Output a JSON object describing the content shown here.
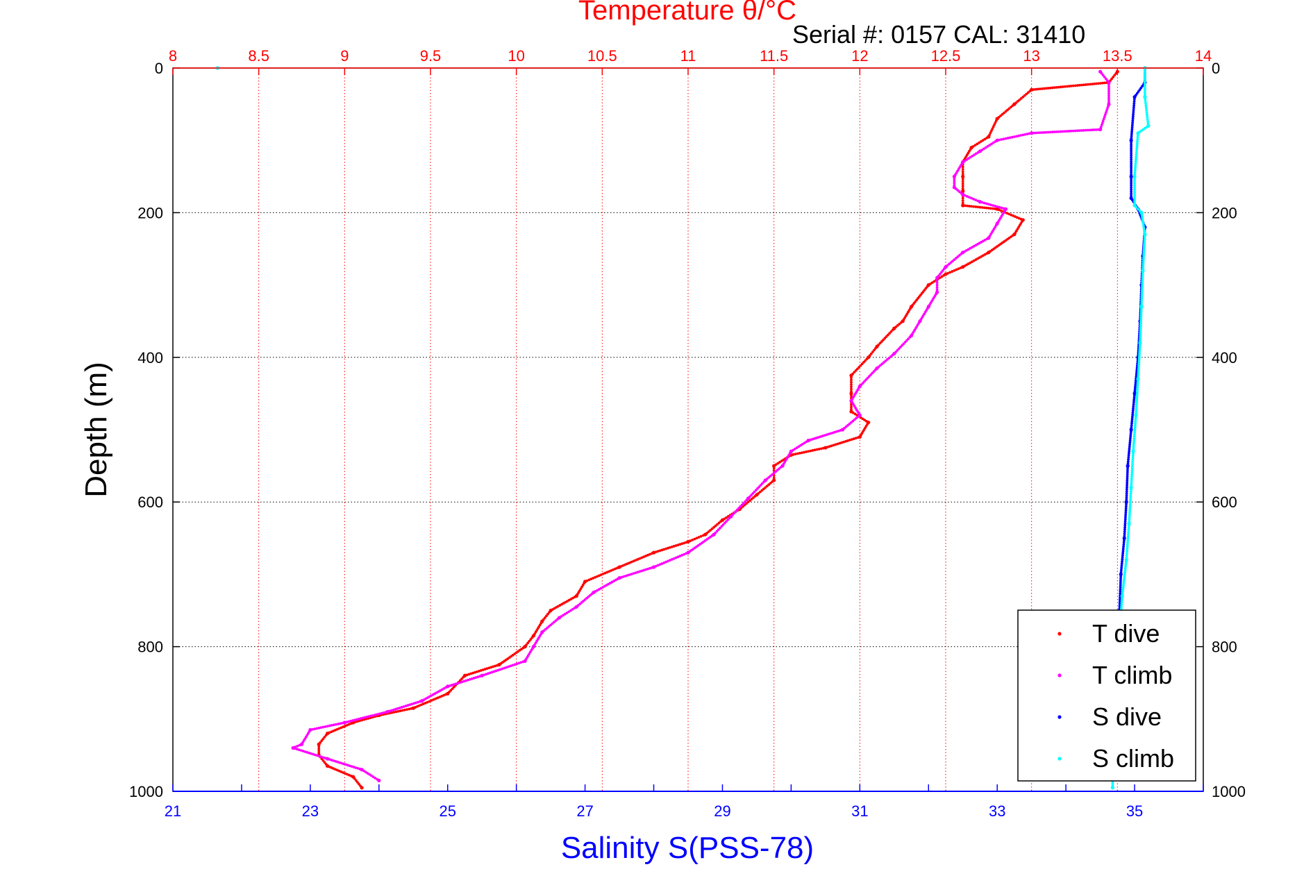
{
  "chart_data": {
    "type": "scatter",
    "title_top": "Temperature θ/°C",
    "subtitle": "Serial #: 0157  CAL: 31410",
    "xlabel_bottom": "Salinity S(PSS-78)",
    "ylabel": "Depth (m)",
    "temperature_axis": {
      "lim": [
        8,
        14
      ],
      "ticks": [
        "8",
        "8.5",
        "9",
        "9.5",
        "10",
        "10.5",
        "11",
        "11.5",
        "12",
        "12.5",
        "13",
        "13.5",
        "14"
      ],
      "tick_values": [
        8,
        8.5,
        9,
        9.5,
        10,
        10.5,
        11,
        11.5,
        12,
        12.5,
        13,
        13.5,
        14
      ],
      "color": "#ff0000"
    },
    "salinity_axis": {
      "lim": [
        21,
        36
      ],
      "ticks": [
        "21",
        "23",
        "25",
        "27",
        "29",
        "31",
        "33",
        "35"
      ],
      "tick_values": [
        21,
        23,
        25,
        27,
        29,
        31,
        33,
        35
      ],
      "color": "#0000ff"
    },
    "depth_axis": {
      "lim": [
        0,
        1000
      ],
      "reversed": true,
      "ticks": [
        "0",
        "200",
        "400",
        "600",
        "800",
        "1000"
      ],
      "tick_values": [
        0,
        200,
        400,
        600,
        800,
        1000
      ]
    },
    "grid": true,
    "legend_placement": "bottom-right",
    "series": [
      {
        "name": "T dive",
        "variable": "temperature",
        "color": "#ff0000",
        "points": [
          [
            13.5,
            5
          ],
          [
            13.45,
            20
          ],
          [
            13.0,
            30
          ],
          [
            12.9,
            50
          ],
          [
            12.8,
            70
          ],
          [
            12.75,
            95
          ],
          [
            12.65,
            110
          ],
          [
            12.6,
            130
          ],
          [
            12.6,
            150
          ],
          [
            12.6,
            170
          ],
          [
            12.6,
            190
          ],
          [
            12.8,
            195
          ],
          [
            12.95,
            210
          ],
          [
            12.9,
            230
          ],
          [
            12.75,
            255
          ],
          [
            12.6,
            275
          ],
          [
            12.5,
            285
          ],
          [
            12.4,
            300
          ],
          [
            12.3,
            330
          ],
          [
            12.25,
            350
          ],
          [
            12.2,
            360
          ],
          [
            12.1,
            385
          ],
          [
            12.05,
            400
          ],
          [
            11.95,
            425
          ],
          [
            11.95,
            450
          ],
          [
            11.95,
            475
          ],
          [
            12.05,
            490
          ],
          [
            12.0,
            510
          ],
          [
            11.8,
            525
          ],
          [
            11.6,
            535
          ],
          [
            11.5,
            550
          ],
          [
            11.5,
            570
          ],
          [
            11.4,
            590
          ],
          [
            11.3,
            610
          ],
          [
            11.2,
            625
          ],
          [
            11.1,
            645
          ],
          [
            11.0,
            655
          ],
          [
            10.8,
            670
          ],
          [
            10.6,
            690
          ],
          [
            10.4,
            710
          ],
          [
            10.35,
            730
          ],
          [
            10.2,
            750
          ],
          [
            10.15,
            765
          ],
          [
            10.1,
            785
          ],
          [
            10.05,
            800
          ],
          [
            9.9,
            825
          ],
          [
            9.7,
            840
          ],
          [
            9.6,
            865
          ],
          [
            9.4,
            885
          ],
          [
            9.2,
            895
          ],
          [
            9.05,
            905
          ],
          [
            8.9,
            920
          ],
          [
            8.85,
            935
          ],
          [
            8.85,
            950
          ],
          [
            8.9,
            965
          ],
          [
            9.05,
            980
          ],
          [
            9.1,
            995
          ]
        ]
      },
      {
        "name": "T climb",
        "variable": "temperature",
        "color": "#ff00ff",
        "points": [
          [
            13.4,
            5
          ],
          [
            13.45,
            20
          ],
          [
            13.45,
            50
          ],
          [
            13.4,
            85
          ],
          [
            13.0,
            90
          ],
          [
            12.8,
            100
          ],
          [
            12.7,
            115
          ],
          [
            12.6,
            130
          ],
          [
            12.55,
            150
          ],
          [
            12.55,
            165
          ],
          [
            12.6,
            175
          ],
          [
            12.7,
            185
          ],
          [
            12.85,
            195
          ],
          [
            12.8,
            215
          ],
          [
            12.75,
            235
          ],
          [
            12.6,
            255
          ],
          [
            12.5,
            275
          ],
          [
            12.45,
            290
          ],
          [
            12.45,
            310
          ],
          [
            12.4,
            330
          ],
          [
            12.35,
            350
          ],
          [
            12.3,
            370
          ],
          [
            12.2,
            395
          ],
          [
            12.1,
            415
          ],
          [
            12.0,
            440
          ],
          [
            11.95,
            460
          ],
          [
            12.0,
            480
          ],
          [
            11.9,
            500
          ],
          [
            11.7,
            515
          ],
          [
            11.6,
            530
          ],
          [
            11.55,
            550
          ],
          [
            11.45,
            570
          ],
          [
            11.35,
            595
          ],
          [
            11.25,
            620
          ],
          [
            11.15,
            645
          ],
          [
            11.0,
            670
          ],
          [
            10.8,
            690
          ],
          [
            10.6,
            705
          ],
          [
            10.45,
            725
          ],
          [
            10.35,
            745
          ],
          [
            10.25,
            760
          ],
          [
            10.15,
            780
          ],
          [
            10.1,
            800
          ],
          [
            10.05,
            820
          ],
          [
            9.8,
            840
          ],
          [
            9.6,
            855
          ],
          [
            9.45,
            875
          ],
          [
            9.25,
            890
          ],
          [
            9.0,
            905
          ],
          [
            8.8,
            915
          ],
          [
            8.75,
            935
          ],
          [
            8.7,
            940
          ],
          [
            8.9,
            955
          ],
          [
            9.1,
            970
          ],
          [
            9.2,
            985
          ]
        ]
      },
      {
        "name": "S dive",
        "variable": "salinity",
        "color": "#0000ff",
        "points": [
          [
            35.15,
            0
          ],
          [
            35.15,
            20
          ],
          [
            35.0,
            40
          ],
          [
            34.95,
            100
          ],
          [
            34.95,
            150
          ],
          [
            34.95,
            180
          ],
          [
            35.05,
            195
          ],
          [
            35.15,
            220
          ],
          [
            35.12,
            260
          ],
          [
            35.1,
            300
          ],
          [
            35.08,
            350
          ],
          [
            35.05,
            400
          ],
          [
            35.0,
            450
          ],
          [
            34.95,
            500
          ],
          [
            34.9,
            550
          ],
          [
            34.88,
            600
          ],
          [
            34.85,
            650
          ],
          [
            34.8,
            700
          ],
          [
            34.78,
            750
          ]
        ]
      },
      {
        "name": "S climb",
        "variable": "salinity",
        "color": "#00ffff",
        "points": [
          [
            21.65,
            0
          ],
          [
            35.15,
            0
          ],
          [
            35.15,
            40
          ],
          [
            35.2,
            80
          ],
          [
            35.05,
            90
          ],
          [
            35.0,
            150
          ],
          [
            35.0,
            190
          ],
          [
            35.1,
            200
          ],
          [
            35.15,
            230
          ],
          [
            35.12,
            280
          ],
          [
            35.1,
            330
          ],
          [
            35.08,
            380
          ],
          [
            35.05,
            430
          ],
          [
            35.02,
            480
          ],
          [
            34.98,
            530
          ],
          [
            34.95,
            580
          ],
          [
            34.92,
            630
          ],
          [
            34.88,
            680
          ],
          [
            34.82,
            730
          ],
          [
            34.78,
            780
          ],
          [
            34.75,
            830
          ],
          [
            34.72,
            880
          ],
          [
            34.7,
            930
          ],
          [
            34.68,
            980
          ],
          [
            34.68,
            995
          ]
        ]
      }
    ]
  }
}
